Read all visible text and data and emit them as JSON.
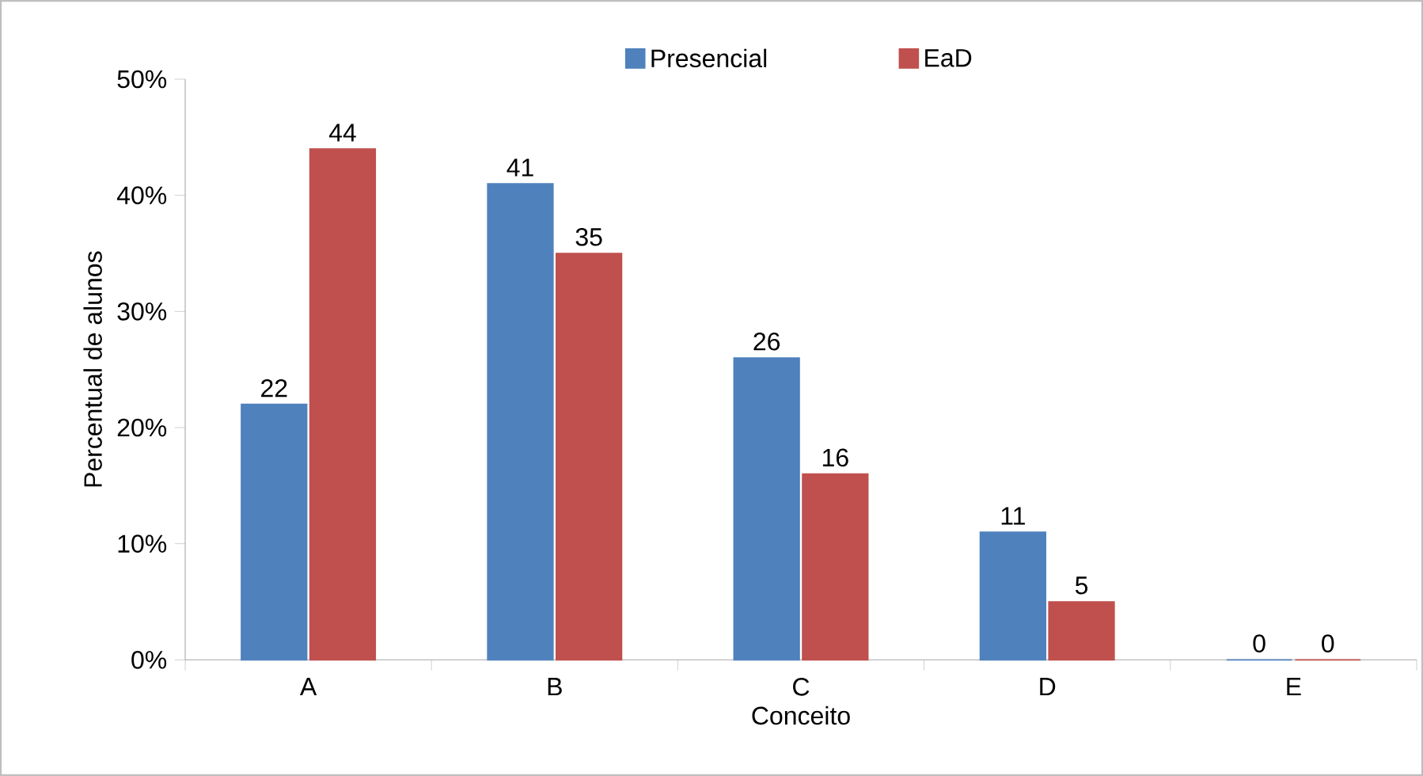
{
  "chart_data": {
    "type": "bar",
    "xlabel": "Conceito",
    "ylabel": "Percentual de alunos",
    "categories": [
      "A",
      "B",
      "C",
      "D",
      "E"
    ],
    "series": [
      {
        "name": "Presencial",
        "color": "#4f81bd",
        "values": [
          22,
          41,
          26,
          11,
          0
        ]
      },
      {
        "name": "EaD",
        "color": "#c0504d",
        "values": [
          44,
          35,
          16,
          5,
          0
        ]
      }
    ],
    "ylim": [
      0,
      50
    ],
    "yticks": [
      {
        "value": 0,
        "label": "0%"
      },
      {
        "value": 10,
        "label": "10%"
      },
      {
        "value": 20,
        "label": "20%"
      },
      {
        "value": 30,
        "label": "30%"
      },
      {
        "value": 40,
        "label": "40%"
      },
      {
        "value": 50,
        "label": "50%"
      }
    ],
    "data_labels": true,
    "legend": "top"
  }
}
